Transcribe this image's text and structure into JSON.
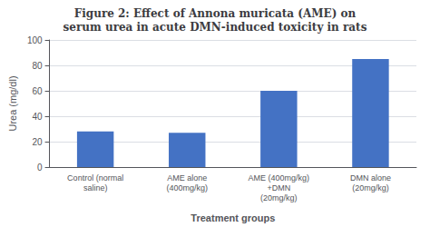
{
  "chart_data": {
    "type": "bar",
    "title": "Figure 2: Effect of Annona muricata (AME) on\nserum urea in acute DMN-induced toxicity in rats",
    "categories": [
      "Control (normal\nsaline)",
      "AME alone\n(400mg/kg)",
      "AME (400mg/kg)\n+DMN\n(20mg/kg)",
      "DMN alone\n(20mg/kg)"
    ],
    "values": [
      28,
      27,
      60,
      85
    ],
    "color": "#4472C4",
    "xlabel": "Treatment groups",
    "ylabel": "Urea (mg/dl)",
    "ylim": [
      0,
      100
    ],
    "yticks": [
      0,
      20,
      40,
      60,
      80,
      100
    ],
    "grid": true
  }
}
